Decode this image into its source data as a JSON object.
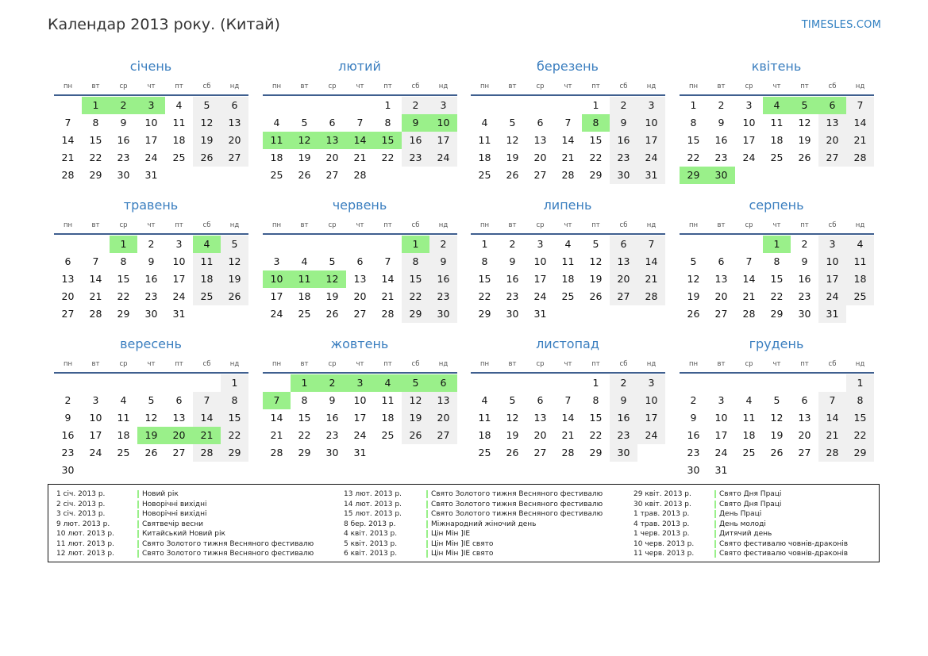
{
  "header": {
    "title": "Календар 2013 року. (Китай)",
    "site": "TIMESLES.COM"
  },
  "weekdays": [
    "пн",
    "вт",
    "ср",
    "чт",
    "пт",
    "сб",
    "нд"
  ],
  "months": [
    {
      "name": "січень",
      "offset": 1,
      "days": 31,
      "holidays": [
        1,
        2,
        3
      ]
    },
    {
      "name": "лютий",
      "offset": 4,
      "days": 28,
      "holidays": [
        9,
        10,
        11,
        12,
        13,
        14,
        15
      ]
    },
    {
      "name": "березень",
      "offset": 4,
      "days": 31,
      "holidays": [
        8
      ]
    },
    {
      "name": "квітень",
      "offset": 0,
      "days": 30,
      "holidays": [
        4,
        5,
        6,
        29,
        30
      ]
    },
    {
      "name": "травень",
      "offset": 2,
      "days": 31,
      "holidays": [
        1,
        4
      ]
    },
    {
      "name": "червень",
      "offset": 5,
      "days": 30,
      "holidays": [
        1,
        10,
        11,
        12
      ]
    },
    {
      "name": "липень",
      "offset": 0,
      "days": 31,
      "holidays": []
    },
    {
      "name": "серпень",
      "offset": 3,
      "days": 31,
      "holidays": [
        1
      ]
    },
    {
      "name": "вересень",
      "offset": 6,
      "days": 30,
      "holidays": [
        19,
        20,
        21
      ]
    },
    {
      "name": "жовтень",
      "offset": 1,
      "days": 31,
      "holidays": [
        1,
        2,
        3,
        4,
        5,
        6,
        7
      ]
    },
    {
      "name": "листопад",
      "offset": 4,
      "days": 30,
      "holidays": []
    },
    {
      "name": "грудень",
      "offset": 6,
      "days": 31,
      "holidays": []
    }
  ],
  "legend": [
    [
      {
        "date": "1 січ. 2013 р.",
        "name": "Новий рік"
      },
      {
        "date": "2 січ. 2013 р.",
        "name": "Новорічні вихідні"
      },
      {
        "date": "3 січ. 2013 р.",
        "name": "Новорічні вихідні"
      },
      {
        "date": "9 лют. 2013 р.",
        "name": "Святвечір весни"
      },
      {
        "date": "10 лют. 2013 р.",
        "name": "Китайський Новий рік"
      },
      {
        "date": "11 лют. 2013 р.",
        "name": "Свято Золотого тижня Весняного фестивалю"
      },
      {
        "date": "12 лют. 2013 р.",
        "name": "Свято Золотого тижня Весняного фестивалю"
      }
    ],
    [
      {
        "date": "13 лют. 2013 р.",
        "name": "Свято Золотого тижня Весняного фестивалю"
      },
      {
        "date": "14 лют. 2013 р.",
        "name": "Свято Золотого тижня Весняного фестивалю"
      },
      {
        "date": "15 лют. 2013 р.",
        "name": "Свято Золотого тижня Весняного фестивалю"
      },
      {
        "date": "8 бер. 2013 р.",
        "name": "Міжнародний жіночий день"
      },
      {
        "date": "4 квіт. 2013 р.",
        "name": "Цін Мін ]IE"
      },
      {
        "date": "5 квіт. 2013 р.",
        "name": "Цін Мін ]IE свято"
      },
      {
        "date": "6 квіт. 2013 р.",
        "name": "Цін Мін ]IE свято"
      }
    ],
    [
      {
        "date": "29 квіт. 2013 р.",
        "name": "Свято Дня Праці"
      },
      {
        "date": "30 квіт. 2013 р.",
        "name": "Свято Дня Праці"
      },
      {
        "date": "1 трав. 2013 р.",
        "name": "День Праці"
      },
      {
        "date": "4 трав. 2013 р.",
        "name": "День молоді"
      },
      {
        "date": "1 черв. 2013 р.",
        "name": "Дитячий день"
      },
      {
        "date": "10 черв. 2013 р.",
        "name": "Свято фестивалю човнів-драконів"
      },
      {
        "date": "11 черв. 2013 р.",
        "name": "Свято фестивалю човнів-драконів"
      }
    ]
  ],
  "colors": {
    "holiday": "#9af08a",
    "weekend": "#f0f0f0",
    "month_name": "#3a7ebf",
    "rule": "#3f5f8f"
  }
}
